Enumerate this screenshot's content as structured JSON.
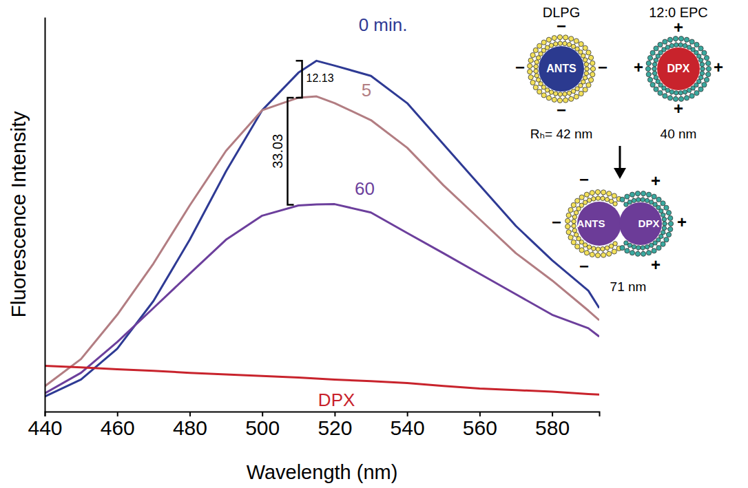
{
  "chart_data": {
    "type": "line",
    "xlabel": "Wavelength (nm)",
    "ylabel": "Fluorescence Intensity",
    "x": [
      440,
      450,
      460,
      470,
      480,
      490,
      500,
      510,
      515,
      520,
      530,
      540,
      550,
      560,
      570,
      580,
      590,
      593
    ],
    "series": [
      {
        "name": "0 min.",
        "color": "#2e3a94",
        "values": [
          4.7,
          10,
          19.6,
          34.5,
          53.6,
          74.9,
          94,
          105.7,
          109.4,
          107.9,
          104.7,
          96.2,
          83.4,
          70.6,
          57.9,
          47.2,
          37.7,
          32.3
        ]
      },
      {
        "name": "5",
        "color": "#b27d82",
        "values": [
          7.9,
          16.4,
          30.2,
          46.2,
          64.3,
          81.3,
          94,
          97.9,
          98.3,
          96.2,
          90.9,
          82.3,
          70.6,
          60,
          49.4,
          40.9,
          31.5,
          28.5
        ]
      },
      {
        "name": "60",
        "color": "#6c3f9c",
        "values": [
          5.7,
          12.1,
          21.7,
          32.3,
          43,
          53.6,
          61.1,
          64.3,
          64.6,
          64.7,
          62.1,
          55.7,
          49.4,
          43,
          36.6,
          30.2,
          26,
          23.4
        ]
      },
      {
        "name": "DPX",
        "color": "#c8232c",
        "values": [
          14.3,
          13.8,
          13.2,
          12.7,
          12.1,
          11.6,
          11.1,
          10.6,
          10.3,
          10,
          9.5,
          8.9,
          8,
          7.2,
          6.7,
          6.2,
          5.5,
          5.3
        ]
      }
    ],
    "xlim": [
      440,
      593
    ],
    "xticks": [
      440,
      460,
      480,
      500,
      520,
      540,
      560,
      580
    ],
    "ylim": [
      0,
      123
    ],
    "tick_labels": "x",
    "grid": false,
    "annotations": [
      {
        "text": "12.13",
        "x": 511,
        "y1": 109.4,
        "y2": 97.9
      },
      {
        "text": "33.03",
        "x": 507,
        "y1": 97.9,
        "y2": 64.5
      }
    ]
  },
  "diagram": {
    "vesicles": [
      {
        "lipid": "DLPG",
        "contents": "ANTS",
        "charge": "−",
        "size": "Rₕ= 42 nm"
      },
      {
        "lipid": "12:0 EPC",
        "contents": "DPX",
        "charge": "+",
        "size": "40 nm"
      }
    ],
    "fused": {
      "contents": [
        "ANTS",
        "DPX"
      ],
      "charges": [
        "−",
        "+"
      ],
      "size": "71 nm"
    }
  }
}
